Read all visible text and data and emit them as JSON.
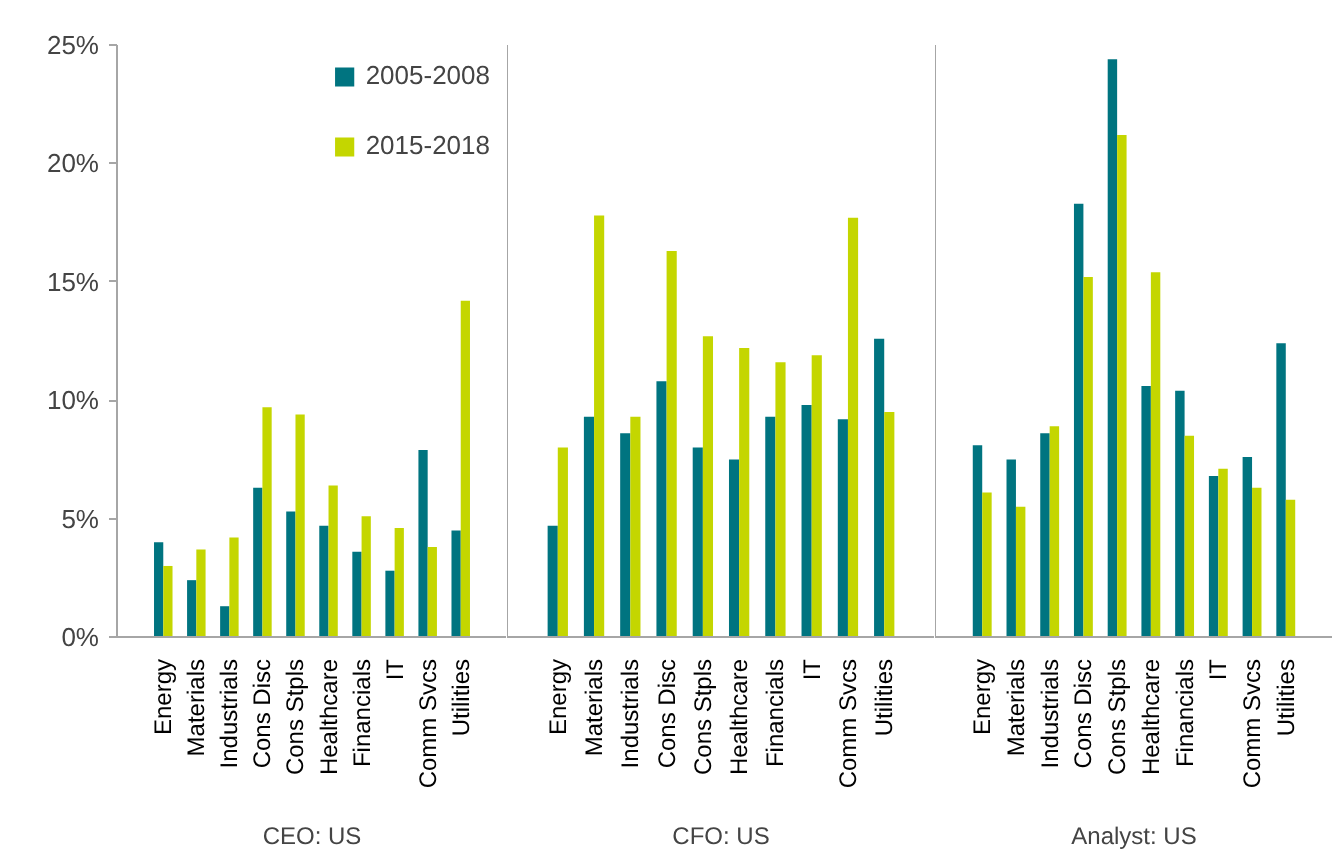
{
  "chart_data": [
    {
      "type": "bar",
      "xlabel": "CEO: US",
      "categories": [
        "Energy",
        "Materials",
        "Industrials",
        "Cons Disc",
        "Cons Stpls",
        "Healthcare",
        "Financials",
        "IT",
        "Comm Svcs",
        "Utilities"
      ],
      "ylim": [
        0,
        25
      ],
      "yticks": [
        {
          "value": 0,
          "label": "0%"
        },
        {
          "value": 5,
          "label": "5%"
        },
        {
          "value": 10,
          "label": "10%"
        },
        {
          "value": 15,
          "label": "15%"
        },
        {
          "value": 20,
          "label": "20%"
        },
        {
          "value": 25,
          "label": "25%"
        }
      ],
      "legend": "top right",
      "series": [
        {
          "name": "2005-2008",
          "color": "#007480",
          "values": [
            4.0,
            2.4,
            1.3,
            6.3,
            5.3,
            4.7,
            3.6,
            2.8,
            7.9,
            4.5
          ]
        },
        {
          "name": "2015-2018",
          "color": "#c4d600",
          "values": [
            3.0,
            3.7,
            4.2,
            9.7,
            9.4,
            6.4,
            5.1,
            4.6,
            3.8,
            14.2
          ]
        }
      ]
    },
    {
      "type": "bar",
      "xlabel": "CFO: US",
      "categories": [
        "Energy",
        "Materials",
        "Industrials",
        "Cons Disc",
        "Cons Stpls",
        "Healthcare",
        "Financials",
        "IT",
        "Comm Svcs",
        "Utilities"
      ],
      "ylim": [
        0,
        25
      ],
      "tick_labels": "x",
      "series": [
        {
          "color": "#007480",
          "values": [
            4.7,
            9.3,
            8.6,
            10.8,
            8.0,
            7.5,
            9.3,
            9.8,
            9.2,
            12.6
          ]
        },
        {
          "color": "#c4d600",
          "values": [
            8.0,
            17.8,
            9.3,
            16.3,
            12.7,
            12.2,
            11.6,
            11.9,
            17.7,
            9.5
          ]
        }
      ]
    },
    {
      "type": "bar",
      "xlabel": "Analyst: US",
      "categories": [
        "Energy",
        "Materials",
        "Industrials",
        "Cons Disc",
        "Cons Stpls",
        "Healthcare",
        "Financials",
        "IT",
        "Comm Svcs",
        "Utilities"
      ],
      "ylim": [
        0,
        25
      ],
      "tick_labels": "x",
      "series": [
        {
          "color": "#007480",
          "values": [
            8.1,
            7.5,
            8.6,
            18.3,
            24.4,
            10.6,
            10.4,
            6.8,
            7.6,
            12.4
          ]
        },
        {
          "color": "#c4d600",
          "values": [
            6.1,
            5.5,
            8.9,
            15.2,
            21.2,
            15.4,
            8.5,
            7.1,
            6.3,
            5.8
          ]
        }
      ]
    }
  ]
}
